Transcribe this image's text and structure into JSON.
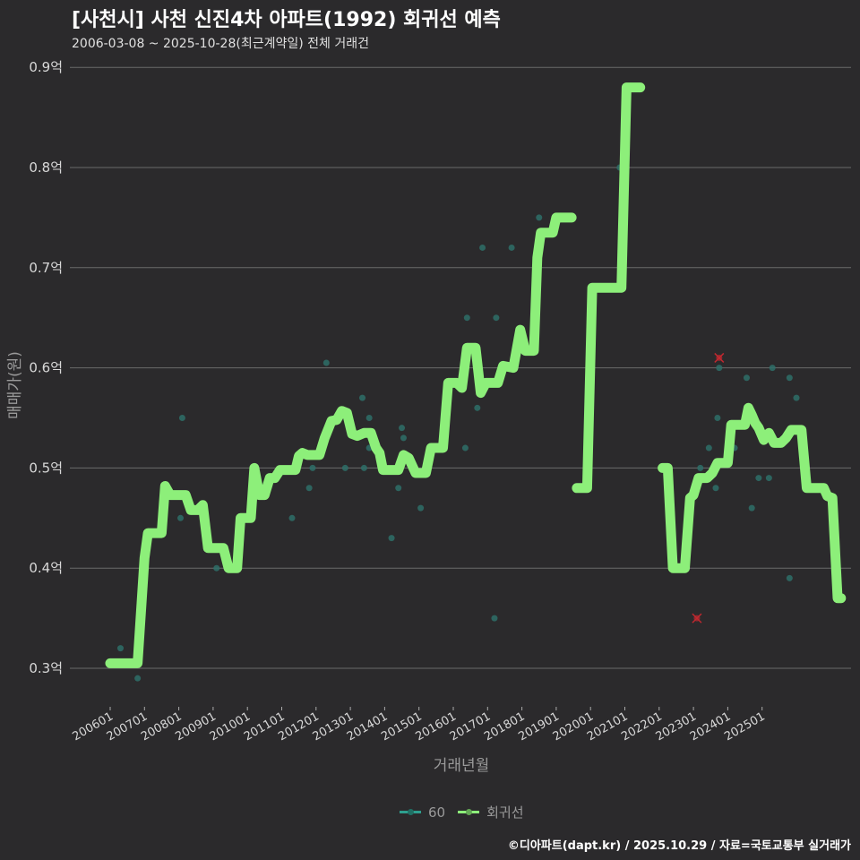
{
  "header": {
    "title": "[사천시] 사천 신진4차 아파트(1992) 회귀선 예측",
    "subtitle": "2006-03-08 ~ 2025-10-28(최근계약일) 전체 거래건"
  },
  "legend": {
    "items": [
      {
        "label": "60",
        "color": "#2e9f8f"
      },
      {
        "label": "회귀선",
        "color": "#8def7a"
      }
    ]
  },
  "caption": "©디아파트(dapt.kr) / 2025.10.29 / 자료=국토교통부 실거래가",
  "colors": {
    "background": "#2b2a2c",
    "grid": "#6a6a6a",
    "regression": "#8def7a",
    "scatter": "#2e6f68",
    "outlier": "#c0282f"
  },
  "chart_data": {
    "type": "line",
    "title": "[사천시] 사천 신진4차 아파트(1992) 회귀선 예측",
    "subtitle": "2006-03-08 ~ 2025-10-28(최근계약일) 전체 거래건",
    "xlabel": "거래년월",
    "ylabel": "매매가(원)",
    "ylim": [
      0.27,
      0.92
    ],
    "y_ticks": [
      0.3,
      0.4,
      0.5,
      0.6,
      0.7,
      0.8,
      0.9
    ],
    "y_tick_labels": [
      "0.3억",
      "0.4억",
      "0.5억",
      "0.6억",
      "0.7억",
      "0.8억",
      "0.9억"
    ],
    "x_tick_labels": [
      "200601",
      "200701",
      "200801",
      "200901",
      "201001",
      "201101",
      "201201",
      "201301",
      "201401",
      "201501",
      "201601",
      "201701",
      "201801",
      "201901",
      "202001",
      "202101",
      "202201",
      "202301",
      "202401",
      "202501"
    ],
    "grid": true,
    "legend_position": "bottom",
    "series": [
      {
        "name": "회귀선",
        "type": "line",
        "points": [
          [
            2006.0,
            0.305
          ],
          [
            2006.8,
            0.305
          ],
          [
            2007.0,
            0.41
          ],
          [
            2007.1,
            0.435
          ],
          [
            2007.5,
            0.435
          ],
          [
            2007.6,
            0.482
          ],
          [
            2007.75,
            0.473
          ],
          [
            2008.2,
            0.473
          ],
          [
            2008.35,
            0.458
          ],
          [
            2008.55,
            0.458
          ],
          [
            2008.7,
            0.463
          ],
          [
            2008.85,
            0.42
          ],
          [
            2009.3,
            0.42
          ],
          [
            2009.45,
            0.4
          ],
          [
            2009.7,
            0.4
          ],
          [
            2009.8,
            0.45
          ],
          [
            2010.1,
            0.45
          ],
          [
            2010.2,
            0.5
          ],
          [
            2010.35,
            0.473
          ],
          [
            2010.5,
            0.473
          ],
          [
            2010.65,
            0.49
          ],
          [
            2010.8,
            0.49
          ],
          [
            2010.95,
            0.498
          ],
          [
            2011.4,
            0.498
          ],
          [
            2011.5,
            0.512
          ],
          [
            2011.6,
            0.515
          ],
          [
            2011.75,
            0.513
          ],
          [
            2012.1,
            0.513
          ],
          [
            2012.25,
            0.53
          ],
          [
            2012.45,
            0.547
          ],
          [
            2012.6,
            0.548
          ],
          [
            2012.75,
            0.557
          ],
          [
            2012.9,
            0.555
          ],
          [
            2013.05,
            0.534
          ],
          [
            2013.2,
            0.532
          ],
          [
            2013.4,
            0.535
          ],
          [
            2013.6,
            0.535
          ],
          [
            2013.75,
            0.52
          ],
          [
            2013.85,
            0.515
          ],
          [
            2013.95,
            0.498
          ],
          [
            2014.4,
            0.498
          ],
          [
            2014.55,
            0.513
          ],
          [
            2014.7,
            0.51
          ],
          [
            2014.9,
            0.495
          ],
          [
            2015.2,
            0.495
          ],
          [
            2015.35,
            0.52
          ],
          [
            2015.7,
            0.52
          ],
          [
            2015.85,
            0.585
          ],
          [
            2016.1,
            0.585
          ],
          [
            2016.25,
            0.58
          ],
          [
            2016.4,
            0.62
          ],
          [
            2016.65,
            0.62
          ],
          [
            2016.8,
            0.575
          ],
          [
            2016.95,
            0.585
          ],
          [
            2017.3,
            0.585
          ],
          [
            2017.45,
            0.602
          ],
          [
            2017.75,
            0.6
          ],
          [
            2017.95,
            0.638
          ],
          [
            2018.1,
            0.617
          ],
          [
            2018.35,
            0.617
          ],
          [
            2018.45,
            0.71
          ],
          [
            2018.55,
            0.735
          ],
          [
            2018.9,
            0.735
          ],
          [
            2019.0,
            0.75
          ],
          [
            2019.45,
            0.75
          ]
        ]
      },
      {
        "name": "회귀선",
        "type": "line",
        "points": [
          [
            2019.6,
            0.48
          ],
          [
            2019.9,
            0.48
          ],
          [
            2020.05,
            0.68
          ],
          [
            2020.9,
            0.68
          ],
          [
            2021.05,
            0.88
          ],
          [
            2021.45,
            0.88
          ]
        ]
      },
      {
        "name": "회귀선",
        "type": "line",
        "points": [
          [
            2022.1,
            0.5
          ],
          [
            2022.25,
            0.5
          ],
          [
            2022.4,
            0.4
          ],
          [
            2022.75,
            0.4
          ],
          [
            2022.9,
            0.47
          ],
          [
            2023.0,
            0.473
          ],
          [
            2023.15,
            0.49
          ],
          [
            2023.4,
            0.49
          ],
          [
            2023.55,
            0.495
          ],
          [
            2023.7,
            0.505
          ],
          [
            2024.0,
            0.505
          ],
          [
            2024.1,
            0.543
          ],
          [
            2024.5,
            0.543
          ],
          [
            2024.6,
            0.56
          ],
          [
            2024.7,
            0.553
          ],
          [
            2024.8,
            0.545
          ],
          [
            2024.9,
            0.54
          ],
          [
            2025.05,
            0.528
          ],
          [
            2025.2,
            0.535
          ],
          [
            2025.35,
            0.525
          ],
          [
            2025.55,
            0.525
          ],
          [
            2025.7,
            0.53
          ],
          [
            2025.85,
            0.538
          ],
          [
            2026.15,
            0.538
          ],
          [
            2026.3,
            0.48
          ],
          [
            2026.8,
            0.48
          ],
          [
            2026.9,
            0.472
          ],
          [
            2027.05,
            0.47
          ],
          [
            2027.2,
            0.37
          ],
          [
            2027.3,
            0.37
          ]
        ]
      },
      {
        "name": "60",
        "type": "scatter",
        "points": [
          [
            2006.3,
            0.32
          ],
          [
            2006.8,
            0.29
          ],
          [
            2008.05,
            0.45
          ],
          [
            2008.1,
            0.55
          ],
          [
            2009.1,
            0.4
          ],
          [
            2009.7,
            0.4
          ],
          [
            2010.25,
            0.5
          ],
          [
            2011.3,
            0.45
          ],
          [
            2011.4,
            0.5
          ],
          [
            2011.8,
            0.48
          ],
          [
            2011.9,
            0.5
          ],
          [
            2012.3,
            0.605
          ],
          [
            2012.85,
            0.5
          ],
          [
            2013.35,
            0.57
          ],
          [
            2013.4,
            0.5
          ],
          [
            2013.55,
            0.55
          ],
          [
            2013.55,
            0.52
          ],
          [
            2014.2,
            0.43
          ],
          [
            2014.4,
            0.48
          ],
          [
            2014.5,
            0.54
          ],
          [
            2014.55,
            0.53
          ],
          [
            2015.05,
            0.46
          ],
          [
            2016.35,
            0.52
          ],
          [
            2016.4,
            0.65
          ],
          [
            2016.7,
            0.56
          ],
          [
            2016.85,
            0.72
          ],
          [
            2017.2,
            0.35
          ],
          [
            2017.25,
            0.65
          ],
          [
            2017.7,
            0.72
          ],
          [
            2018.5,
            0.75
          ],
          [
            2019.9,
            0.48
          ],
          [
            2020.85,
            0.8
          ],
          [
            2023.2,
            0.5
          ],
          [
            2023.45,
            0.52
          ],
          [
            2023.65,
            0.48
          ],
          [
            2023.7,
            0.55
          ],
          [
            2023.75,
            0.6
          ],
          [
            2024.2,
            0.52
          ],
          [
            2024.55,
            0.59
          ],
          [
            2024.7,
            0.46
          ],
          [
            2024.9,
            0.49
          ],
          [
            2025.2,
            0.49
          ],
          [
            2025.3,
            0.6
          ],
          [
            2025.8,
            0.59
          ],
          [
            2025.8,
            0.39
          ],
          [
            2026.0,
            0.57
          ]
        ]
      },
      {
        "name": "outlier",
        "type": "scatter",
        "marker": "x",
        "points": [
          [
            2023.1,
            0.35
          ],
          [
            2023.75,
            0.61
          ]
        ]
      }
    ]
  }
}
